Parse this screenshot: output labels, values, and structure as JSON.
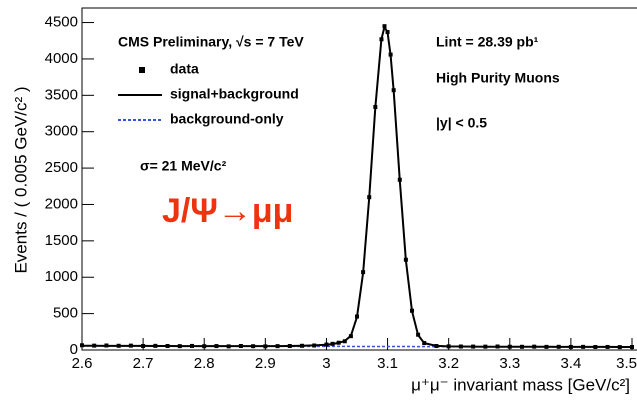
{
  "chart_data": {
    "type": "scatter",
    "x_label": "μ⁺μ⁻ invariant mass [GeV/c²]",
    "y_label": "Events / ( 0.005 GeV/c² )",
    "annotations": [
      "CMS Preliminary, √s = 7 TeV",
      "σ= 21 MeV/c²",
      "J/Ψ→μμ",
      "Lint = 28.39 pb¹",
      "High Purity Muons",
      "|y| < 0.5"
    ],
    "xlim": [
      2.6,
      3.5
    ],
    "xticks": [
      2.6,
      2.7,
      2.8,
      2.9,
      3,
      3.1,
      3.2,
      3.3,
      3.4,
      3.5
    ],
    "ylim": [
      0,
      4700
    ],
    "yticks": [
      0,
      500,
      1000,
      1500,
      2000,
      2500,
      3000,
      3500,
      4000,
      4500
    ],
    "x": [
      2.6,
      2.62,
      2.64,
      2.66,
      2.68,
      2.7,
      2.72,
      2.74,
      2.76,
      2.78,
      2.8,
      2.82,
      2.84,
      2.86,
      2.88,
      2.9,
      2.92,
      2.94,
      2.96,
      2.98,
      3.0,
      3.01,
      3.02,
      3.03,
      3.04,
      3.05,
      3.06,
      3.07,
      3.08,
      3.09,
      3.095,
      3.1,
      3.105,
      3.11,
      3.12,
      3.13,
      3.14,
      3.15,
      3.16,
      3.18,
      3.2,
      3.22,
      3.24,
      3.26,
      3.28,
      3.3,
      3.32,
      3.34,
      3.36,
      3.38,
      3.4,
      3.42,
      3.44,
      3.46,
      3.48,
      3.5
    ],
    "series": [
      {
        "name": "data",
        "color": "#000000",
        "style": "points",
        "values": [
          65,
          60,
          62,
          58,
          60,
          55,
          57,
          55,
          53,
          56,
          52,
          54,
          50,
          55,
          52,
          50,
          53,
          55,
          58,
          62,
          75,
          85,
          100,
          120,
          190,
          460,
          1070,
          2100,
          3340,
          4270,
          4450,
          4370,
          4060,
          3570,
          2340,
          1240,
          540,
          210,
          95,
          55,
          50,
          48,
          47,
          46,
          48,
          45,
          44,
          46,
          43,
          44,
          42,
          43,
          41,
          42,
          40,
          41
        ]
      },
      {
        "name": "signal+background",
        "color": "#000000",
        "style": "line",
        "values": [
          58,
          58,
          57,
          57,
          56,
          56,
          55,
          55,
          54,
          54,
          54,
          53,
          53,
          53,
          53,
          53,
          54,
          55,
          58,
          63,
          72,
          82,
          98,
          125,
          195,
          455,
          1060,
          2090,
          3330,
          4270,
          4440,
          4360,
          4050,
          3560,
          2330,
          1230,
          535,
          205,
          95,
          56,
          50,
          48,
          47,
          46,
          46,
          45,
          45,
          44,
          44,
          43,
          43,
          43,
          42,
          42,
          41,
          41
        ]
      },
      {
        "name": "background-only",
        "color": "#3355dd",
        "style": "dashed",
        "x": [
          2.6,
          3.5
        ],
        "values": [
          56,
          41
        ]
      }
    ]
  }
}
